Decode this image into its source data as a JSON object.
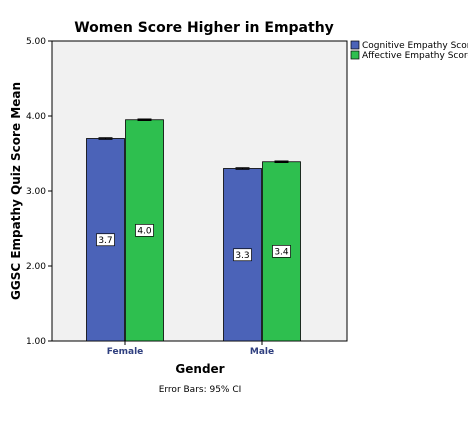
{
  "chart_data": {
    "type": "bar",
    "title": "Women Score Higher in Empathy",
    "xlabel": "Gender",
    "ylabel": "GGSC Empathy Quiz Score Mean",
    "categories": [
      "Female",
      "Male"
    ],
    "series": [
      {
        "name": "Cognitive Empathy Score",
        "color": "#4b63b8",
        "values": [
          3.7,
          3.3
        ],
        "labels": [
          "3.7",
          "3.3"
        ],
        "ci_low": [
          3.69,
          3.29
        ],
        "ci_high": [
          3.71,
          3.31
        ]
      },
      {
        "name": "Affective Empathy Score",
        "color": "#2ebf4f",
        "values": [
          3.95,
          3.39
        ],
        "labels": [
          "4.0",
          "3.4"
        ],
        "ci_low": [
          3.94,
          3.38
        ],
        "ci_high": [
          3.96,
          3.4
        ]
      }
    ],
    "ylim": [
      1.0,
      5.0
    ],
    "yticks": [
      1.0,
      2.0,
      3.0,
      4.0,
      5.0
    ],
    "ytick_labels": [
      "1.00",
      "2.00",
      "3.00",
      "4.00",
      "5.00"
    ],
    "grid": false,
    "plot_background": "#f1f1f1",
    "legend_position": "top-right",
    "note": "Error Bars: 95% CI"
  }
}
